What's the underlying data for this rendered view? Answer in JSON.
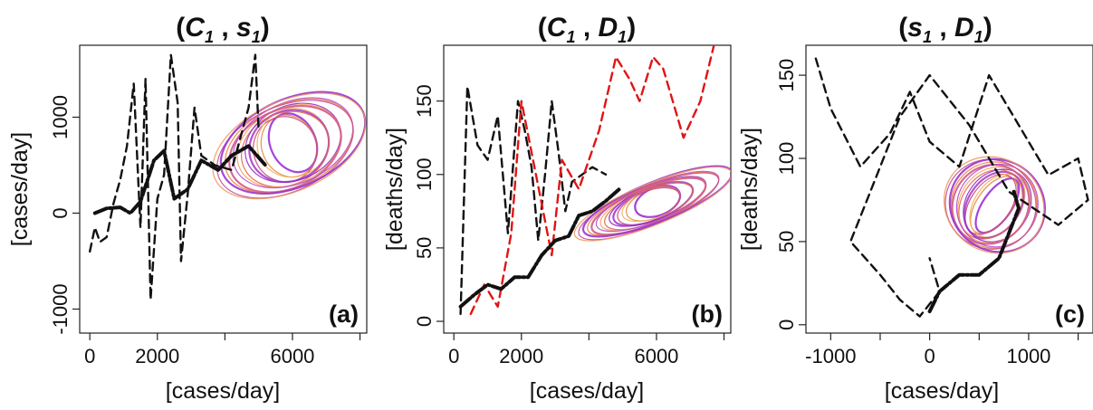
{
  "chart_data": [
    {
      "type": "line",
      "panel_label": "(a)",
      "title": {
        "open": "(",
        "v1": "C",
        "s1": "1",
        "sep": " , ",
        "v2": "s",
        "s2": "1",
        "close": ")"
      },
      "xlabel": "[cases/day]",
      "ylabel": "[cases/day]",
      "xlim": [
        -300,
        8200
      ],
      "ylim": [
        -1250,
        1750
      ],
      "xticks": [
        0,
        2000,
        6000
      ],
      "xticks_minor": [
        4000,
        8000
      ],
      "yticks": [
        1000,
        0,
        -1000
      ],
      "series": [
        {
          "style": "dashed",
          "color": "#111111",
          "points": [
            [
              0,
              -400
            ],
            [
              150,
              -150
            ],
            [
              300,
              -300
            ],
            [
              500,
              -250
            ],
            [
              700,
              100
            ],
            [
              900,
              350
            ],
            [
              1100,
              700
            ],
            [
              1300,
              1350
            ],
            [
              1500,
              -150
            ],
            [
              1650,
              1400
            ],
            [
              1800,
              -900
            ],
            [
              2000,
              150
            ],
            [
              2200,
              400
            ],
            [
              2400,
              1650
            ],
            [
              2600,
              1150
            ],
            [
              2700,
              -500
            ],
            [
              2900,
              200
            ],
            [
              3100,
              1100
            ],
            [
              3300,
              600
            ],
            [
              3700,
              500
            ],
            [
              4200,
              450
            ],
            [
              4700,
              1100
            ],
            [
              4900,
              1650
            ],
            [
              5000,
              850
            ]
          ]
        },
        {
          "style": "solid-bold",
          "color": "#111111",
          "points": [
            [
              150,
              0
            ],
            [
              500,
              50
            ],
            [
              900,
              60
            ],
            [
              1200,
              0
            ],
            [
              1500,
              120
            ],
            [
              1900,
              550
            ],
            [
              2200,
              650
            ],
            [
              2500,
              150
            ],
            [
              2900,
              250
            ],
            [
              3300,
              550
            ],
            [
              3800,
              450
            ],
            [
              4200,
              600
            ],
            [
              4700,
              700
            ],
            [
              5200,
              500
            ]
          ]
        }
      ],
      "attractor": {
        "center": [
          5900,
          700
        ],
        "rx": 2400,
        "ry": 470,
        "tilt_deg": 24,
        "rings": 14,
        "colors": [
          "#9b30d9",
          "#e0883a",
          "#c8467e",
          "#f2b15a",
          "#a940c9",
          "#e06a4a",
          "#8f2bc4",
          "#f5a35c",
          "#d35a86",
          "#b44ad0",
          "#ec7f3d",
          "#c24c9a",
          "#9a35cf",
          "#f0975b"
        ]
      }
    },
    {
      "type": "line",
      "panel_label": "(b)",
      "title": {
        "open": "(",
        "v1": "C",
        "s1": "1",
        "sep": " , ",
        "v2": "D",
        "s2": "1",
        "close": ")"
      },
      "xlabel": "[cases/day]",
      "ylabel": "[deaths/day]",
      "xlim": [
        -300,
        8200
      ],
      "ylim": [
        -8,
        188
      ],
      "xticks": [
        0,
        2000,
        6000
      ],
      "xticks_minor": [
        4000,
        8000
      ],
      "yticks": [
        0,
        50,
        100,
        150
      ],
      "series": [
        {
          "style": "dashed",
          "color": "#111111",
          "points": [
            [
              200,
              5
            ],
            [
              400,
              160
            ],
            [
              700,
              120
            ],
            [
              1000,
              110
            ],
            [
              1300,
              140
            ],
            [
              1600,
              60
            ],
            [
              1900,
              150
            ],
            [
              2100,
              130
            ],
            [
              2300,
              105
            ],
            [
              2500,
              55
            ],
            [
              2700,
              100
            ],
            [
              2900,
              150
            ],
            [
              3100,
              115
            ],
            [
              3300,
              75
            ],
            [
              3500,
              95
            ],
            [
              3800,
              100
            ],
            [
              4100,
              105
            ],
            [
              4500,
              100
            ]
          ]
        },
        {
          "style": "dashed",
          "color": "#e01414",
          "points": [
            [
              500,
              5
            ],
            [
              900,
              25
            ],
            [
              1300,
              10
            ],
            [
              1700,
              60
            ],
            [
              2000,
              150
            ],
            [
              2300,
              115
            ],
            [
              2600,
              80
            ],
            [
              2900,
              45
            ],
            [
              3200,
              110
            ],
            [
              3700,
              90
            ],
            [
              4300,
              130
            ],
            [
              4800,
              180
            ],
            [
              5200,
              165
            ],
            [
              5500,
              150
            ],
            [
              5900,
              180
            ],
            [
              6200,
              172
            ],
            [
              6800,
              125
            ],
            [
              7300,
              150
            ],
            [
              7700,
              188
            ]
          ]
        },
        {
          "style": "solid-bold",
          "color": "#111111",
          "points": [
            [
              200,
              10
            ],
            [
              600,
              18
            ],
            [
              1000,
              25
            ],
            [
              1400,
              22
            ],
            [
              1800,
              30
            ],
            [
              2200,
              30
            ],
            [
              2600,
              45
            ],
            [
              3000,
              55
            ],
            [
              3400,
              58
            ],
            [
              3700,
              72
            ],
            [
              4100,
              75
            ],
            [
              4500,
              82
            ],
            [
              4900,
              90
            ]
          ]
        }
      ],
      "attractor": {
        "center": [
          5900,
          80
        ],
        "rx": 2500,
        "ry": 14,
        "tilt_deg": 22,
        "rings": 14,
        "colors": [
          "#9b30d9",
          "#e0883a",
          "#c8467e",
          "#f2b15a",
          "#a940c9",
          "#e06a4a",
          "#8f2bc4",
          "#f5a35c",
          "#d35a86",
          "#b44ad0",
          "#ec7f3d",
          "#c24c9a",
          "#9a35cf",
          "#f0975b"
        ]
      }
    },
    {
      "type": "line",
      "panel_label": "(c)",
      "title": {
        "open": "(",
        "v1": "s",
        "s1": "1",
        "sep": " , ",
        "v2": "D",
        "s2": "1",
        "close": ")"
      },
      "xlabel": "[cases/day]",
      "ylabel": "[deaths/day]",
      "xlim": [
        -1250,
        1650
      ],
      "ylim": [
        -5,
        168
      ],
      "xticks": [
        -1000,
        0,
        1000
      ],
      "xticks_minor": [
        -500,
        500,
        1500
      ],
      "yticks": [
        0,
        50,
        100,
        150
      ],
      "series": [
        {
          "style": "dashed",
          "color": "#111111",
          "points": [
            [
              -1150,
              160
            ],
            [
              -1000,
              130
            ],
            [
              -700,
              95
            ],
            [
              -400,
              115
            ],
            [
              -200,
              140
            ],
            [
              -100,
              125
            ],
            [
              0,
              110
            ],
            [
              300,
              95
            ],
            [
              600,
              150
            ],
            [
              900,
              120
            ],
            [
              1200,
              90
            ],
            [
              1500,
              100
            ],
            [
              1600,
              75
            ],
            [
              1300,
              60
            ],
            [
              800,
              80
            ],
            [
              400,
              120
            ],
            [
              0,
              150
            ],
            [
              -300,
              125
            ],
            [
              -600,
              80
            ],
            [
              -800,
              50
            ],
            [
              -500,
              30
            ],
            [
              -300,
              15
            ],
            [
              -100,
              5
            ],
            [
              100,
              20
            ],
            [
              0,
              40
            ]
          ]
        },
        {
          "style": "solid-bold",
          "color": "#111111",
          "points": [
            [
              0,
              8
            ],
            [
              100,
              20
            ],
            [
              300,
              30
            ],
            [
              500,
              30
            ],
            [
              700,
              40
            ],
            [
              800,
              55
            ],
            [
              900,
              70
            ],
            [
              850,
              80
            ]
          ]
        }
      ],
      "attractor": {
        "center": [
          650,
          72
        ],
        "rx": 520,
        "ry": 28,
        "tilt_deg": -35,
        "rings": 14,
        "colors": [
          "#9b30d9",
          "#e0883a",
          "#c8467e",
          "#f2b15a",
          "#a940c9",
          "#e06a4a",
          "#8f2bc4",
          "#f5a35c",
          "#d35a86",
          "#b44ad0",
          "#ec7f3d",
          "#c24c9a",
          "#9a35cf",
          "#f0975b"
        ]
      }
    }
  ]
}
